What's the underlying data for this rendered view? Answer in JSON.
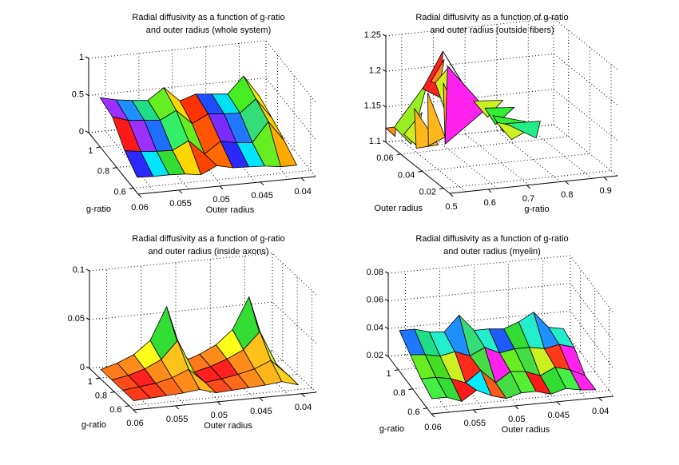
{
  "figure": {
    "background": "#ffffff"
  },
  "chart_data": [
    {
      "type": "surface3d",
      "id": "whole",
      "title_line1": "Radial diffusivity as a function of g-ratio",
      "title_line2": "and outer radius (whole system)",
      "xlabel": "Outer radius",
      "ylabel": "g-ratio",
      "zlabel": "",
      "x_ticks": [
        "0.06",
        "0.055",
        "0.05",
        "0.045",
        "0.04"
      ],
      "x_tick_values": [
        0.06,
        0.055,
        0.05,
        0.045,
        0.04
      ],
      "y_ticks": [
        "0.6",
        "0.8",
        "1"
      ],
      "y_tick_values": [
        0.6,
        0.8,
        1.0
      ],
      "z_ticks": [
        "0",
        "0.5",
        "1"
      ],
      "z_tick_values": [
        0,
        0.5,
        1
      ],
      "xlim": [
        0.06,
        0.037
      ],
      "ylim": [
        0.5,
        1.0
      ],
      "zlim": [
        0,
        1
      ],
      "grid": true,
      "z": [
        [
          0.5,
          0.45,
          0.42,
          0.4,
          0.55,
          0.35,
          0.42,
          0.4,
          0.38,
          0.6,
          0.3
        ],
        [
          0.45,
          0.38,
          0.36,
          0.34,
          0.45,
          0.25,
          0.36,
          0.34,
          0.33,
          0.5,
          0.22
        ],
        [
          0.2,
          0.17,
          0.15,
          0.14,
          0.25,
          0.05,
          0.2,
          0.16,
          0.14,
          0.4,
          0.12
        ],
        [
          0.05,
          0.04,
          0.04,
          0.03,
          0.0,
          0.1,
          0.05,
          0.04,
          0.03,
          0.0,
          0.0
        ]
      ],
      "colors": [
        [
          "#9b30ff",
          "#1e90ff",
          "#22dd88",
          "#66ee22",
          "#ffd700",
          "#ff3300",
          "#1e4cff",
          "#00e0f0",
          "#44ee22",
          "#ffee00",
          "#ff4400"
        ],
        [
          "#ff1a1a",
          "#9b30ff",
          "#1e6fff",
          "#33ee66",
          "#66ee22",
          "#ff5500",
          "#7a2cff",
          "#2277ff",
          "#33dd77",
          "#ffcc00",
          "#ff3300"
        ],
        [
          "#2a2aff",
          "#00e5ff",
          "#33dd33",
          "#ffd700",
          "#ff4400",
          "#ff6a00",
          "#2a2aff",
          "#00e5ff",
          "#66ee22",
          "#ffaa00",
          "#ff3300"
        ]
      ]
    },
    {
      "type": "surface3d",
      "id": "outside",
      "title_line1": "Radial diffusivity as a function of g-ratio",
      "title_line2": "and outer radius (outside fibers)",
      "xlabel": "g-ratio",
      "ylabel": "Outer radius",
      "zlabel": "",
      "x_ticks": [
        "0.5",
        "0.6",
        "0.7",
        "0.8",
        "0.9"
      ],
      "x_tick_values": [
        0.5,
        0.6,
        0.7,
        0.8,
        0.9
      ],
      "y_ticks": [
        "0.02",
        "0.04",
        "0.06"
      ],
      "y_tick_values": [
        0.02,
        0.04,
        0.06
      ],
      "z_ticks": [
        "1.1",
        "1.15",
        "1.2",
        "1.25"
      ],
      "z_tick_values": [
        1.1,
        1.15,
        1.2,
        1.25
      ],
      "xlim": [
        0.5,
        0.9
      ],
      "ylim": [
        0.02,
        0.06
      ],
      "zlim": [
        1.1,
        1.25
      ],
      "grid": true,
      "facets": [
        {
          "color": "#ff8c1a",
          "pts": [
            [
              0.0,
              1.0,
              1.12
            ],
            [
              0.06,
              1.0,
              1.12
            ],
            [
              0.04,
              0.96,
              1.11
            ]
          ]
        },
        {
          "color": "#99ee22",
          "pts": [
            [
              0.05,
              1.0,
              1.12
            ],
            [
              0.25,
              1.0,
              1.18
            ],
            [
              0.12,
              0.92,
              1.1
            ]
          ]
        },
        {
          "color": "#ccee22",
          "pts": [
            [
              0.1,
              0.98,
              1.11
            ],
            [
              0.2,
              0.96,
              1.14
            ],
            [
              0.14,
              0.9,
              1.1
            ]
          ]
        },
        {
          "color": "#ff2020",
          "pts": [
            [
              0.22,
              1.0,
              1.17
            ],
            [
              0.34,
              1.0,
              1.22
            ],
            [
              0.3,
              0.94,
              1.16
            ]
          ]
        },
        {
          "color": "#ff8c1a",
          "pts": [
            [
              0.26,
              0.98,
              1.18
            ],
            [
              0.34,
              0.98,
              1.21
            ],
            [
              0.3,
              0.94,
              1.18
            ]
          ]
        },
        {
          "color": "#ccf022",
          "pts": [
            [
              0.28,
              0.96,
              1.18
            ],
            [
              0.36,
              0.96,
              1.2
            ],
            [
              0.32,
              0.9,
              1.14
            ]
          ]
        },
        {
          "color": "#ff2020",
          "pts": [
            [
              0.34,
              1.0,
              1.22
            ],
            [
              0.48,
              0.96,
              1.16
            ],
            [
              0.38,
              0.96,
              1.2
            ]
          ]
        },
        {
          "color": "#ccf022",
          "pts": [
            [
              0.36,
              0.95,
              1.2
            ],
            [
              0.46,
              0.92,
              1.16
            ],
            [
              0.4,
              0.88,
              1.12
            ]
          ]
        },
        {
          "color": "#ffb61a",
          "pts": [
            [
              0.14,
              0.92,
              1.15
            ],
            [
              0.26,
              0.86,
              1.1
            ],
            [
              0.12,
              0.84,
              1.1
            ]
          ]
        },
        {
          "color": "#ffb61a",
          "pts": [
            [
              0.22,
              0.92,
              1.17
            ],
            [
              0.3,
              0.86,
              1.11
            ],
            [
              0.2,
              0.86,
              1.1
            ]
          ]
        },
        {
          "color": "#ffb61a",
          "pts": [
            [
              0.32,
              0.94,
              1.18
            ],
            [
              0.4,
              0.88,
              1.13
            ],
            [
              0.3,
              0.86,
              1.1
            ]
          ]
        },
        {
          "color": "#ff22ee",
          "pts": [
            [
              0.36,
              0.98,
              1.2
            ],
            [
              0.56,
              0.9,
              1.14
            ],
            [
              0.3,
              0.86,
              1.1
            ]
          ]
        },
        {
          "color": "#ccf022",
          "pts": [
            [
              0.5,
              0.94,
              1.15
            ],
            [
              0.66,
              0.9,
              1.15
            ],
            [
              0.56,
              0.88,
              1.13
            ]
          ]
        },
        {
          "color": "#33ee33",
          "pts": [
            [
              0.56,
              0.92,
              1.14
            ],
            [
              0.72,
              0.88,
              1.14
            ],
            [
              0.6,
              0.86,
              1.12
            ]
          ]
        },
        {
          "color": "#33ee33",
          "pts": [
            [
              0.6,
              0.9,
              1.13
            ],
            [
              0.78,
              0.86,
              1.12
            ],
            [
              0.64,
              0.84,
              1.11
            ]
          ]
        },
        {
          "color": "#ccf022",
          "pts": [
            [
              0.62,
              0.9,
              1.12
            ],
            [
              0.8,
              0.84,
              1.11
            ],
            [
              0.68,
              0.82,
              1.1
            ]
          ]
        },
        {
          "color": "#22ee88",
          "pts": [
            [
              0.66,
              0.86,
              1.12
            ],
            [
              0.86,
              0.84,
              1.12
            ],
            [
              0.82,
              0.8,
              1.1
            ]
          ]
        }
      ]
    },
    {
      "type": "surface3d",
      "id": "axons",
      "title_line1": "Radial diffusivity as a function of g-ratio",
      "title_line2": "and outer radius (inside axons)",
      "xlabel": "Outer radius",
      "ylabel": "g-ratio",
      "zlabel": "",
      "x_ticks": [
        "0.06",
        "0.055",
        "0.05",
        "0.045",
        "0.04"
      ],
      "x_tick_values": [
        0.06,
        0.055,
        0.05,
        0.045,
        0.04
      ],
      "y_ticks": [
        "0.6",
        "0.8",
        "1"
      ],
      "y_tick_values": [
        0.6,
        0.8,
        1.0
      ],
      "z_ticks": [
        "0",
        "0.05",
        "0.1"
      ],
      "z_tick_values": [
        0,
        0.05,
        0.1
      ],
      "xlim": [
        0.06,
        0.037
      ],
      "ylim": [
        0.5,
        1.0
      ],
      "zlim": [
        0,
        0.1
      ],
      "grid": true,
      "z": [
        [
          0.0,
          0.005,
          0.012,
          0.025,
          0.058,
          0.0,
          0.006,
          0.014,
          0.028,
          0.06,
          0.0
        ],
        [
          0.0,
          0.003,
          0.008,
          0.016,
          0.034,
          0.0,
          0.004,
          0.01,
          0.018,
          0.035,
          0.0
        ],
        [
          0.0,
          0.002,
          0.004,
          0.008,
          0.015,
          0.0,
          0.002,
          0.005,
          0.009,
          0.016,
          0.0
        ],
        [
          0.0,
          0.001,
          0.002,
          0.003,
          0.005,
          0.0,
          0.001,
          0.002,
          0.003,
          0.005,
          0.0
        ]
      ],
      "colors": [
        [
          "#ff7a1a",
          "#ff8c1a",
          "#ffff1a",
          "#33dd33",
          "#33ee66",
          "#ff7a1a",
          "#ff8c1a",
          "#ffff1a",
          "#33dd33",
          "#33ee66"
        ],
        [
          "#ff4a1a",
          "#ff2020",
          "#ff8c1a",
          "#ffc21a",
          "#ccee22",
          "#ff2020",
          "#ff2020",
          "#ff8c1a",
          "#ffc21a",
          "#ccee22"
        ],
        [
          "#ff3a1a",
          "#ff3a1a",
          "#ff6a1a",
          "#ff8c1a",
          "#ffb61a",
          "#ff4a1a",
          "#ff6a1a",
          "#ff8c1a",
          "#ffb61a",
          "#ffd21a"
        ]
      ]
    },
    {
      "type": "surface3d",
      "id": "myelin",
      "title_line1": "Radial diffusivity as a function of g-ratio",
      "title_line2": "and outer radius (myelin)",
      "xlabel": "Outer radius",
      "ylabel": "g-ratio",
      "zlabel": "",
      "x_ticks": [
        "0.06",
        "0.055",
        "0.05",
        "0.045",
        "0.04"
      ],
      "x_tick_values": [
        0.06,
        0.055,
        0.05,
        0.045,
        0.04
      ],
      "y_ticks": [
        "0.6",
        "0.8",
        "1"
      ],
      "y_tick_values": [
        0.6,
        0.8,
        1.0
      ],
      "z_ticks": [
        "0.02",
        "0.04",
        "0.06",
        "0.08"
      ],
      "z_tick_values": [
        0.02,
        0.04,
        0.06,
        0.08
      ],
      "xlim": [
        0.06,
        0.037
      ],
      "ylim": [
        0.5,
        1.0
      ],
      "zlim": [
        0.02,
        0.08
      ],
      "grid": true,
      "z": [
        [
          0.04,
          0.04,
          0.037,
          0.036,
          0.047,
          0.035,
          0.035,
          0.034,
          0.038,
          0.044,
          0.032,
          0.03
        ],
        [
          0.033,
          0.032,
          0.03,
          0.032,
          0.028,
          0.033,
          0.028,
          0.03,
          0.03,
          0.028,
          0.03,
          0.027
        ],
        [
          0.026,
          0.026,
          0.024,
          0.02,
          0.028,
          0.018,
          0.025,
          0.024,
          0.02,
          0.025,
          0.022,
          0.015
        ],
        [
          0.022,
          0.022,
          0.018,
          0.025,
          0.02,
          0.015,
          0.02,
          0.02,
          0.015,
          0.02,
          0.018,
          0.015
        ]
      ],
      "colors": [
        [
          "#1e78ff",
          "#22dd88",
          "#22eecc",
          "#1e90ff",
          "#33dd77",
          "#22eecc",
          "#1e5cff",
          "#33dd33",
          "#22eecc",
          "#1e90ff",
          "#22eecc"
        ],
        [
          "#66ee22",
          "#44dd22",
          "#ccf022",
          "#ff2a1a",
          "#44dd44",
          "#ff22ee",
          "#66ee22",
          "#44dd44",
          "#ccf022",
          "#ff3a1a",
          "#ff22ee"
        ],
        [
          "#44ee44",
          "#33dd33",
          "#ff1a1a",
          "#00eeff",
          "#ff5a1a",
          "#44dd44",
          "#55ee33",
          "#ff1a1a",
          "#33dd33",
          "#44ee44",
          "#ff22ee"
        ]
      ]
    }
  ]
}
